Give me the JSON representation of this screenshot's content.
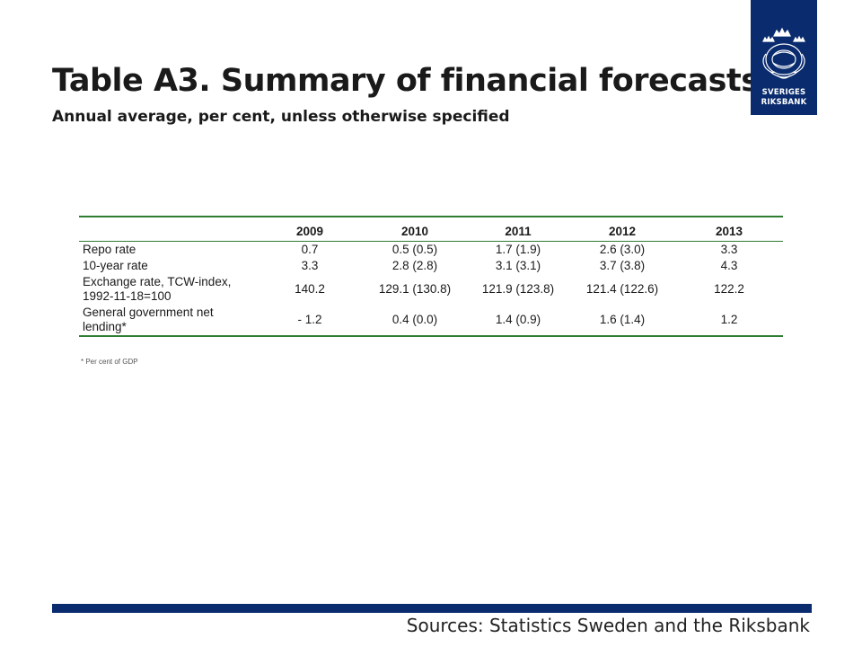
{
  "title": "Table A3. Summary of financial forecasts",
  "subtitle": "Annual average, per cent, unless otherwise specified",
  "logo": {
    "line1": "SVERIGES",
    "line2": "RIKSBANK",
    "color": "#0a2c6e"
  },
  "table": {
    "headers": [
      "",
      "2009",
      "2010",
      "2011",
      "2012",
      "2013"
    ],
    "rows": [
      {
        "label": "Repo rate",
        "values": [
          "0.7",
          "0.5 (0.5)",
          "1.7 (1.9)",
          "2.6 (3.0)",
          "3.3"
        ]
      },
      {
        "label": "10-year rate",
        "values": [
          "3.3",
          "2.8 (2.8)",
          "3.1 (3.1)",
          "3.7 (3.8)",
          "4.3"
        ]
      },
      {
        "label": "Exchange rate, TCW-index, 1992-11-18=100",
        "values": [
          "140.2",
          "129.1 (130.8)",
          "121.9 (123.8)",
          "121.4 (122.6)",
          "122.2"
        ]
      },
      {
        "label": "General government net lending*",
        "values": [
          "- 1.2",
          "0.4 (0.0)",
          "1.4 (0.9)",
          "1.6 (1.4)",
          "1.2"
        ]
      }
    ],
    "rule_color": "#2e7d32"
  },
  "footnote": "* Per cent of GDP",
  "sources": "Sources: Statistics Sweden and the Riksbank",
  "accent_color": "#0a2c6e"
}
